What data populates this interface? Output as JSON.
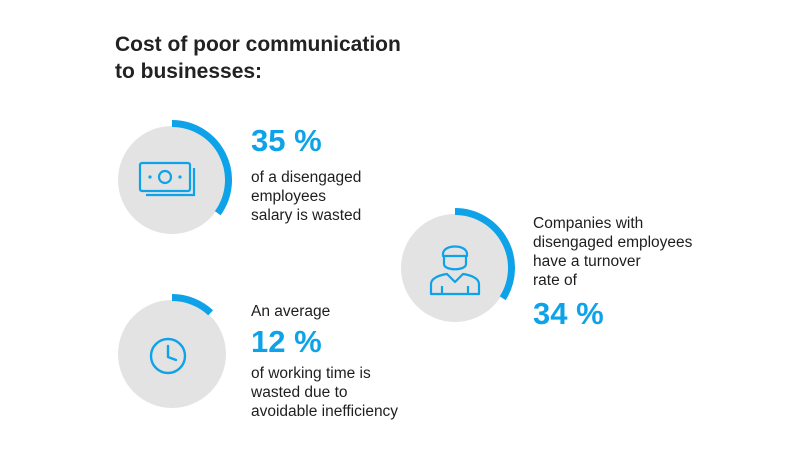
{
  "title": {
    "line1": "Cost of poor communication",
    "line2": "to businesses:"
  },
  "colors": {
    "accent": "#0ea3e8",
    "circle_bg": "#e3e3e3",
    "text": "#1e1e1e"
  },
  "stats": [
    {
      "icon": "money-icon",
      "progress_fraction": 0.35,
      "value": "35 %",
      "desc_lines": [
        "of a disengaged",
        "employees",
        "salary is wasted"
      ]
    },
    {
      "icon": "clock-icon",
      "progress_fraction": 0.12,
      "pre": "An average",
      "value": "12 %",
      "desc_lines": [
        "of working time is",
        "wasted due to",
        "avoidable inefficiency"
      ]
    },
    {
      "icon": "employee-icon",
      "progress_fraction": 0.34,
      "desc_lines": [
        "Companies with",
        "disengaged employees",
        "have a turnover",
        "rate of"
      ],
      "value": "34 %"
    }
  ]
}
